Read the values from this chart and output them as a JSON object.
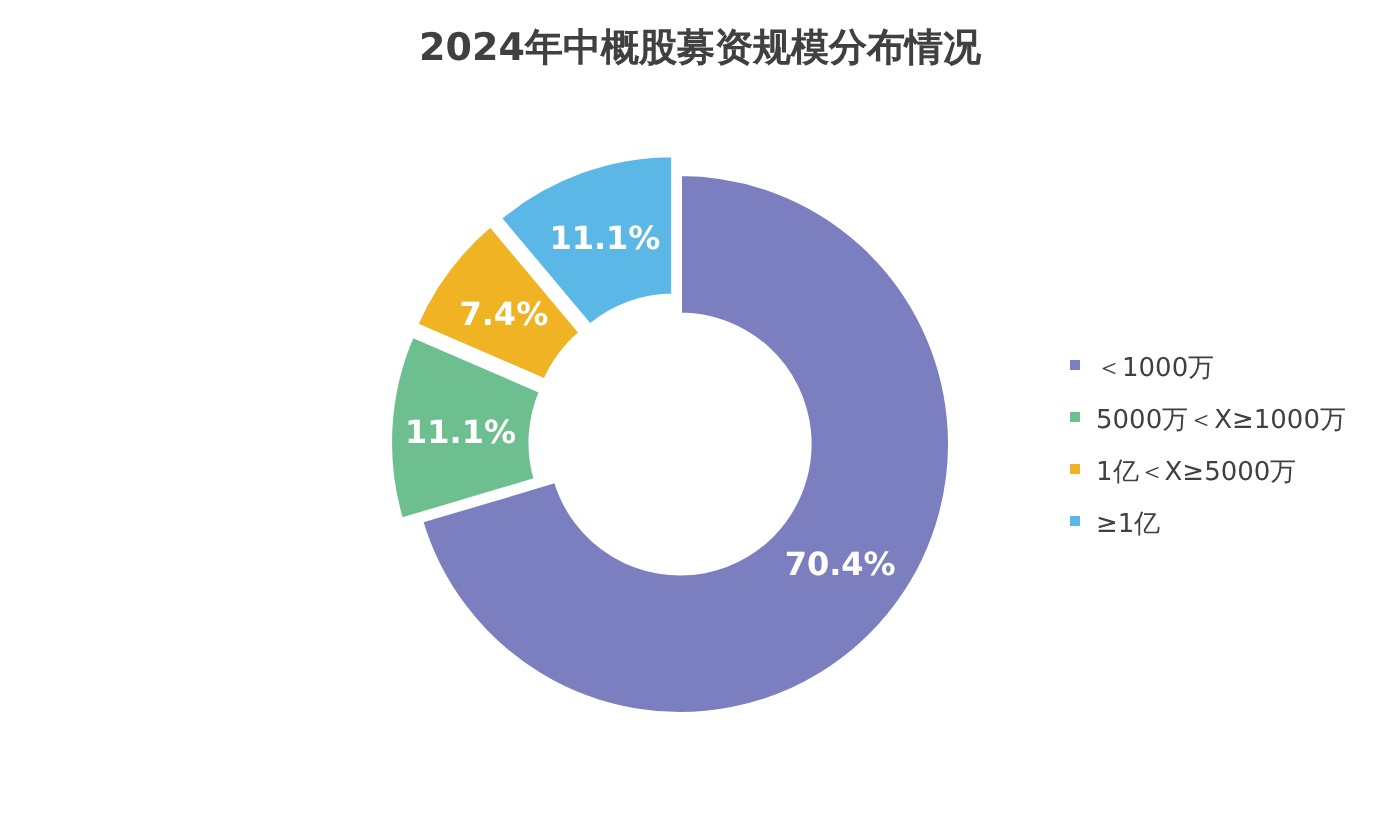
{
  "chart_data": {
    "type": "donut",
    "title": "2024年中概股募资规模分布情况",
    "categories": [
      "＜1000万",
      "5000万＜X≥1000万",
      "1亿＜X≥5000万",
      "≥1亿"
    ],
    "values": [
      70.4,
      11.1,
      7.4,
      11.1
    ],
    "colors": [
      "#7b7fc0",
      "#6dbf8f",
      "#f0b323",
      "#5bb8e6"
    ],
    "value_labels": [
      "70.4%",
      "11.1%",
      "7.4%",
      "11.1%"
    ],
    "legend": "right"
  }
}
